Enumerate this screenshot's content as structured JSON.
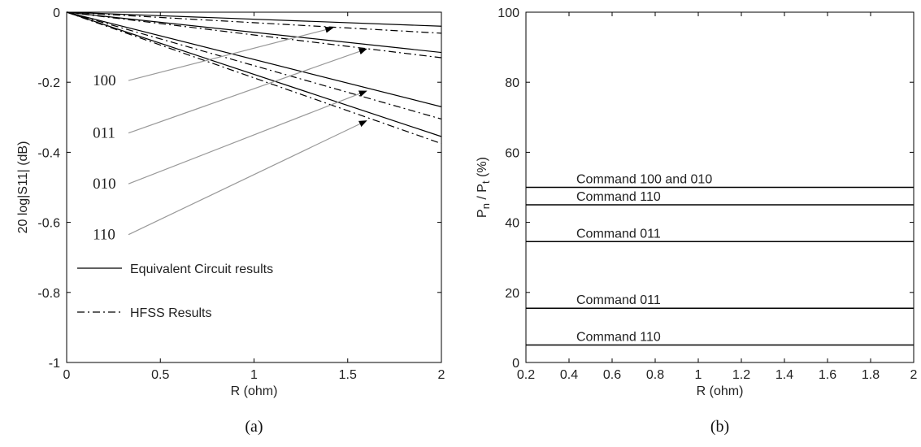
{
  "chart_data": [
    {
      "panel": "a",
      "type": "line",
      "caption": "(a)",
      "xlabel": "R (ohm)",
      "ylabel": "20 log|S11| (dB)",
      "xlim": [
        0,
        2
      ],
      "ylim": [
        -1,
        0
      ],
      "xticks": [
        0,
        0.5,
        1,
        1.5,
        2
      ],
      "xtick_labels": [
        "0",
        "0.5",
        "1",
        "1.5",
        "2"
      ],
      "yticks": [
        0,
        -0.2,
        -0.4,
        -0.6,
        -0.8,
        -1
      ],
      "ytick_labels": [
        "0",
        "-0.2",
        "-0.4",
        "-0.6",
        "-0.8",
        "-1"
      ],
      "grid": false,
      "legend": {
        "position": "lower-left",
        "entries": [
          {
            "label": "Equivalent Circuit results",
            "style": "solid"
          },
          {
            "label": "HFSS Results",
            "style": "dashdot"
          }
        ]
      },
      "series": [
        {
          "code": "100",
          "method": "Equivalent Circuit",
          "style": "solid",
          "x": [
            0,
            2
          ],
          "y": [
            0,
            -0.04
          ]
        },
        {
          "code": "100",
          "method": "HFSS",
          "style": "dashdot",
          "x": [
            0,
            2
          ],
          "y": [
            0,
            -0.06
          ]
        },
        {
          "code": "011",
          "method": "Equivalent Circuit",
          "style": "solid",
          "x": [
            0,
            2
          ],
          "y": [
            0,
            -0.115
          ]
        },
        {
          "code": "011",
          "method": "HFSS",
          "style": "dashdot",
          "x": [
            0,
            2
          ],
          "y": [
            0,
            -0.13
          ]
        },
        {
          "code": "010",
          "method": "Equivalent Circuit",
          "style": "solid",
          "x": [
            0,
            2
          ],
          "y": [
            0,
            -0.27
          ]
        },
        {
          "code": "010",
          "method": "HFSS",
          "style": "dashdot",
          "x": [
            0,
            2
          ],
          "y": [
            0,
            -0.305
          ]
        },
        {
          "code": "110",
          "method": "Equivalent Circuit",
          "style": "solid",
          "x": [
            0,
            2
          ],
          "y": [
            0,
            -0.355
          ]
        },
        {
          "code": "110",
          "method": "HFSS",
          "style": "dashdot",
          "x": [
            0,
            2
          ],
          "y": [
            0,
            -0.375
          ]
        }
      ],
      "annotations": [
        {
          "text": "100",
          "label_at": [
            0.33,
            -0.195
          ],
          "arrow_to": [
            1.42,
            -0.045
          ]
        },
        {
          "text": "011",
          "label_at": [
            0.33,
            -0.345
          ],
          "arrow_to": [
            1.6,
            -0.105
          ]
        },
        {
          "text": "010",
          "label_at": [
            0.33,
            -0.49
          ],
          "arrow_to": [
            1.6,
            -0.225
          ]
        },
        {
          "text": "110",
          "label_at": [
            0.33,
            -0.635
          ],
          "arrow_to": [
            1.6,
            -0.31
          ]
        }
      ]
    },
    {
      "panel": "b",
      "type": "line",
      "caption": "(b)",
      "xlabel": "R (ohm)",
      "ylabel_main": "P",
      "ylabel_sub_n": "n",
      "ylabel_slash": " / P",
      "ylabel_sub_t": "t",
      "ylabel_unit": " (%)",
      "xlim": [
        0.2,
        2
      ],
      "ylim": [
        0,
        100
      ],
      "xticks": [
        0.2,
        0.4,
        0.6,
        0.8,
        1,
        1.2,
        1.4,
        1.6,
        1.8,
        2
      ],
      "xtick_labels": [
        "0.2",
        "0.4",
        "0.6",
        "0.8",
        "1",
        "1.2",
        "1.4",
        "1.6",
        "1.8",
        "2"
      ],
      "yticks": [
        0,
        20,
        40,
        60,
        80,
        100
      ],
      "ytick_labels": [
        "0",
        "20",
        "40",
        "60",
        "80",
        "100"
      ],
      "grid": false,
      "series": [
        {
          "name": "Command 100 and 010",
          "x": [
            0.2,
            2
          ],
          "y": [
            50,
            50
          ]
        },
        {
          "name": "Command 110",
          "x": [
            0.2,
            2
          ],
          "y": [
            45,
            45
          ]
        },
        {
          "name": "Command 011",
          "x": [
            0.2,
            2
          ],
          "y": [
            34.5,
            34.5
          ]
        },
        {
          "name": "Command 011",
          "x": [
            0.2,
            2
          ],
          "y": [
            15.5,
            15.5
          ]
        },
        {
          "name": "Command 110",
          "x": [
            0.2,
            2
          ],
          "y": [
            5,
            5
          ]
        }
      ]
    }
  ]
}
